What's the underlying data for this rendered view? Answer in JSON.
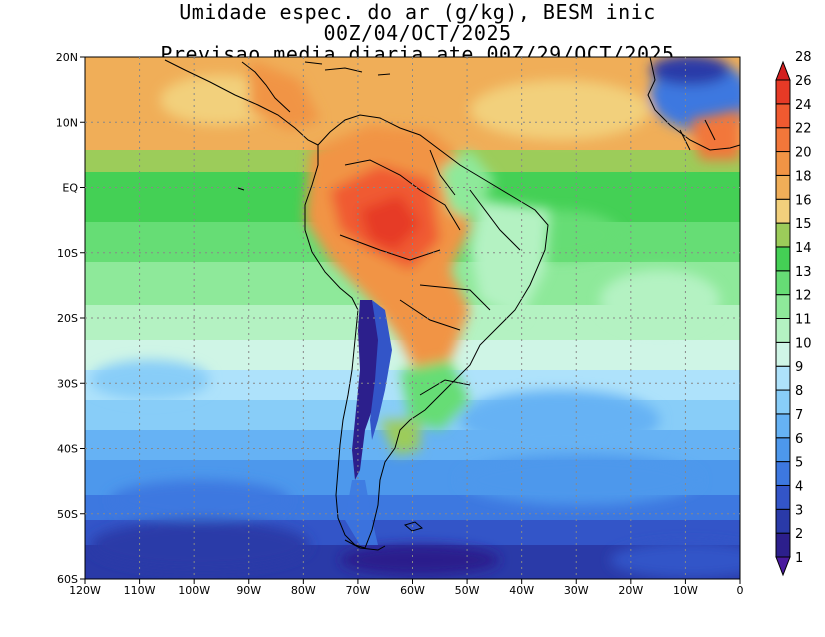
{
  "title": {
    "line1": "Umidade espec. do ar (g/kg), BESM inic 00Z/04/OCT/2025",
    "line2": "Previsao media diaria ate 00Z/29/OCT/2025"
  },
  "map": {
    "lon_range": [
      -120,
      0
    ],
    "lat_range": [
      -60,
      20
    ],
    "lon_ticks": [
      {
        "value": -120,
        "label": "120W"
      },
      {
        "value": -110,
        "label": "110W"
      },
      {
        "value": -100,
        "label": "100W"
      },
      {
        "value": -90,
        "label": "90W"
      },
      {
        "value": -80,
        "label": "80W"
      },
      {
        "value": -70,
        "label": "70W"
      },
      {
        "value": -60,
        "label": "60W"
      },
      {
        "value": -50,
        "label": "50W"
      },
      {
        "value": -40,
        "label": "40W"
      },
      {
        "value": -30,
        "label": "30W"
      },
      {
        "value": -20,
        "label": "20W"
      },
      {
        "value": -10,
        "label": "10W"
      },
      {
        "value": 0,
        "label": "0"
      }
    ],
    "lat_ticks": [
      {
        "value": 20,
        "label": "20N"
      },
      {
        "value": 10,
        "label": "10N"
      },
      {
        "value": 0,
        "label": "EQ"
      },
      {
        "value": -10,
        "label": "10S"
      },
      {
        "value": -20,
        "label": "20S"
      },
      {
        "value": -30,
        "label": "30S"
      },
      {
        "value": -40,
        "label": "40S"
      },
      {
        "value": -50,
        "label": "50S"
      },
      {
        "value": -60,
        "label": "60S"
      }
    ],
    "grid": true
  },
  "colorbar": {
    "levels": [
      {
        "label": "1",
        "color": "#4a1a9e"
      },
      {
        "label": "2",
        "color": "#2c1f8c"
      },
      {
        "label": "3",
        "color": "#2a3aa8"
      },
      {
        "label": "4",
        "color": "#3355c8"
      },
      {
        "label": "5",
        "color": "#3d78e0"
      },
      {
        "label": "6",
        "color": "#4d98ec"
      },
      {
        "label": "7",
        "color": "#66b2f4"
      },
      {
        "label": "8",
        "color": "#88cdf8"
      },
      {
        "label": "9",
        "color": "#aee2fb"
      },
      {
        "label": "10",
        "color": "#cff5e6"
      },
      {
        "label": "11",
        "color": "#b4f2c2"
      },
      {
        "label": "12",
        "color": "#8ee99a"
      },
      {
        "label": "13",
        "color": "#66dd75"
      },
      {
        "label": "14",
        "color": "#44d055"
      },
      {
        "label": "15",
        "color": "#9ccc5a"
      },
      {
        "label": "16",
        "color": "#f2d07c"
      },
      {
        "label": "18",
        "color": "#f0ae58"
      },
      {
        "label": "20",
        "color": "#f19445"
      },
      {
        "label": "22",
        "color": "#f2773a"
      },
      {
        "label": "24",
        "color": "#f05a30"
      },
      {
        "label": "26",
        "color": "#e63a26"
      },
      {
        "label": "28",
        "color": "#d42020"
      }
    ]
  }
}
